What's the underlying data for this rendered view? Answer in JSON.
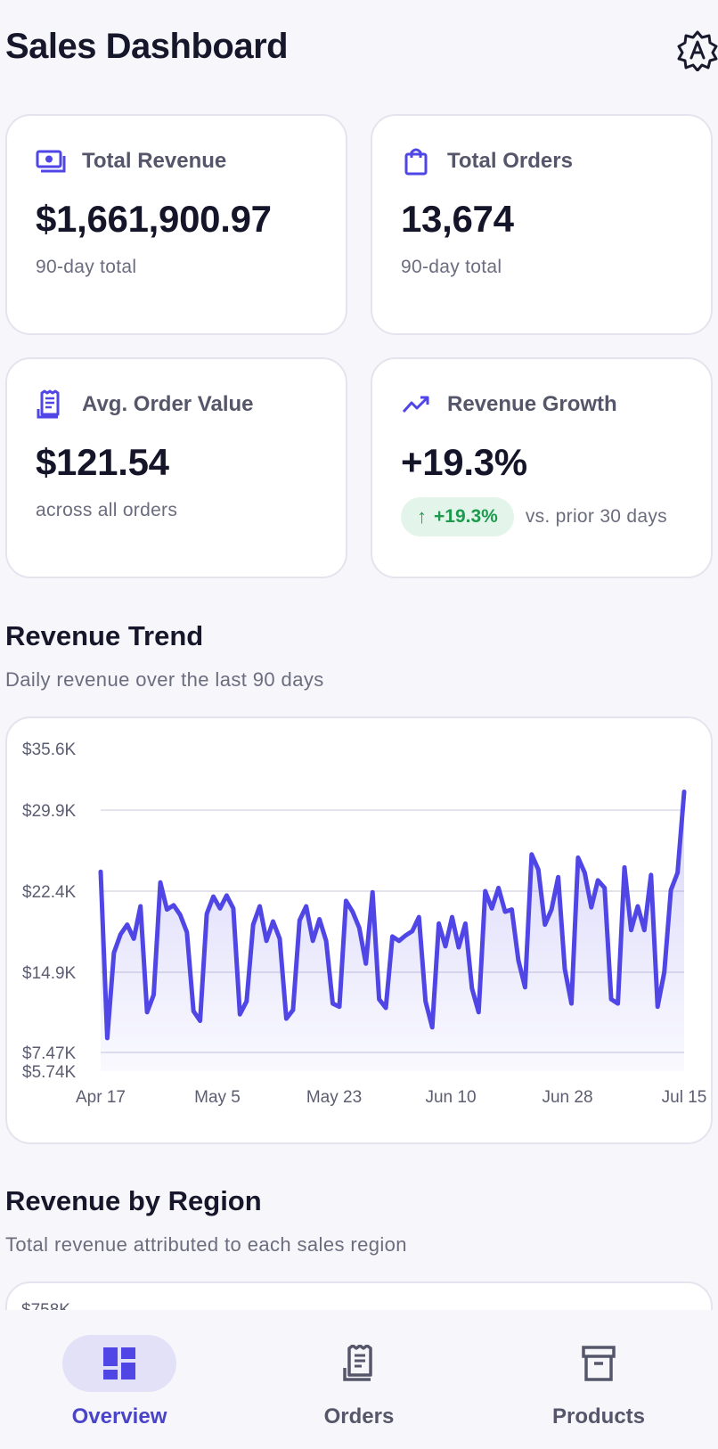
{
  "header": {
    "title": "Sales Dashboard",
    "theme_icon": "auto-theme-icon"
  },
  "kpis": {
    "revenue": {
      "label": "Total Revenue",
      "value": "$1,661,900.97",
      "sub": "90-day total",
      "icon": "money-icon"
    },
    "orders": {
      "label": "Total Orders",
      "value": "13,674",
      "sub": "90-day total",
      "icon": "shopping-bag-icon"
    },
    "aov": {
      "label": "Avg. Order Value",
      "value": "$121.54",
      "sub": "across all orders",
      "icon": "receipt-icon"
    },
    "growth": {
      "label": "Revenue Growth",
      "value": "+19.3%",
      "badge": "+19.3%",
      "sub": "vs. prior 30 days",
      "icon": "trending-up-icon",
      "badge_color": "#1e9a4e"
    }
  },
  "trend": {
    "title": "Revenue Trend",
    "subtitle": "Daily revenue over the last 90 days"
  },
  "region": {
    "title": "Revenue by Region",
    "subtitle": "Total revenue attributed to each sales region",
    "first_tick": "$758K"
  },
  "nav": {
    "items": [
      {
        "label": "Overview",
        "icon": "dashboard-icon",
        "active": true
      },
      {
        "label": "Orders",
        "icon": "receipt-icon",
        "active": false
      },
      {
        "label": "Products",
        "icon": "archive-icon",
        "active": false
      }
    ]
  },
  "colors": {
    "accent": "#4f46e5",
    "positive": "#1e9a4e",
    "background": "#f7f7fb"
  },
  "chart_data": {
    "type": "area",
    "title": "",
    "xlabel": "",
    "ylabel": "",
    "y_ticks": [
      "$35.6K",
      "$29.9K",
      "$22.4K",
      "$14.9K",
      "$7.47K",
      "$5.74K"
    ],
    "y_tick_values": [
      35600,
      29900,
      22400,
      14900,
      7470,
      5740
    ],
    "x_ticks": [
      "Apr 17",
      "May 5",
      "May 23",
      "Jun 10",
      "Jun 28",
      "Jul 15"
    ],
    "ylim": [
      5740,
      35600
    ],
    "grid": true,
    "series": [
      {
        "values": [
          24200,
          8800,
          16700,
          18400,
          19300,
          18000,
          21000,
          11200,
          12800,
          23200,
          20700,
          21100,
          20200,
          18600,
          11300,
          10400,
          20300,
          21900,
          20800,
          22000,
          20800,
          11000,
          12200,
          19300,
          21000,
          17800,
          19600,
          18000,
          10600,
          11400,
          19700,
          21000,
          17800,
          19800,
          17800,
          12000,
          11700,
          21500,
          20500,
          19000,
          15700,
          22300,
          12400,
          11600,
          18200,
          17800,
          18300,
          18700,
          20000,
          12200,
          9800,
          19400,
          17300,
          20000,
          17200,
          19400,
          13400,
          11200,
          22400,
          20800,
          22700,
          20500,
          20700,
          16000,
          13500,
          25800,
          24400,
          19300,
          20700,
          23700,
          15200,
          12000,
          25500,
          24100,
          20900,
          23400,
          22700,
          12400,
          12000,
          24600,
          18800,
          21000,
          18800,
          23900,
          11700,
          14900,
          22500,
          24100,
          31600
        ]
      }
    ]
  }
}
